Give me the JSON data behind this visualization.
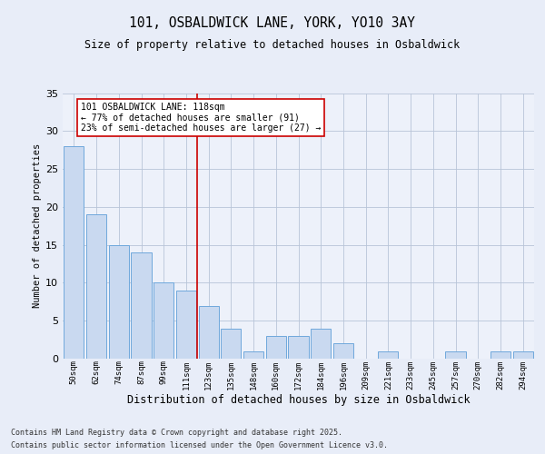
{
  "title1": "101, OSBALDWICK LANE, YORK, YO10 3AY",
  "title2": "Size of property relative to detached houses in Osbaldwick",
  "xlabel": "Distribution of detached houses by size in Osbaldwick",
  "ylabel": "Number of detached properties",
  "categories": [
    "50sqm",
    "62sqm",
    "74sqm",
    "87sqm",
    "99sqm",
    "111sqm",
    "123sqm",
    "135sqm",
    "148sqm",
    "160sqm",
    "172sqm",
    "184sqm",
    "196sqm",
    "209sqm",
    "221sqm",
    "233sqm",
    "245sqm",
    "257sqm",
    "270sqm",
    "282sqm",
    "294sqm"
  ],
  "values": [
    28,
    19,
    15,
    14,
    10,
    9,
    7,
    4,
    1,
    3,
    3,
    4,
    2,
    0,
    1,
    0,
    0,
    1,
    0,
    1,
    1
  ],
  "bar_color": "#c9d9f0",
  "bar_edge_color": "#6fa8dc",
  "vline_x": 5.5,
  "vline_color": "#cc0000",
  "annotation_text": "101 OSBALDWICK LANE: 118sqm\n← 77% of detached houses are smaller (91)\n23% of semi-detached houses are larger (27) →",
  "annotation_box_color": "#ffffff",
  "annotation_box_edge_color": "#cc0000",
  "ylim": [
    0,
    35
  ],
  "yticks": [
    0,
    5,
    10,
    15,
    20,
    25,
    30,
    35
  ],
  "footer1": "Contains HM Land Registry data © Crown copyright and database right 2025.",
  "footer2": "Contains public sector information licensed under the Open Government Licence v3.0.",
  "bg_color": "#e8edf8",
  "plot_bg_color": "#edf1fa"
}
